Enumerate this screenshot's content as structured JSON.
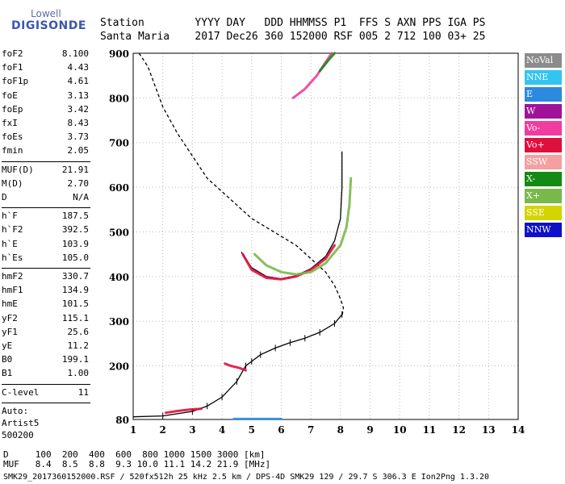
{
  "logo": {
    "line1": "Lowell",
    "line2": "DIGISONDE"
  },
  "header": {
    "line1": "Station        YYYY DAY   DDD HHMMSS P1  FFS S AXN PPS IGA PS",
    "line2": "Santa Maria    2017 Dec26 360 152000 RSF 005 2 712 100 03+ 25"
  },
  "params_group1": [
    {
      "k": "foF2",
      "v": "8.100"
    },
    {
      "k": "foF1",
      "v": "4.43"
    },
    {
      "k": "foF1p",
      "v": "4.61"
    },
    {
      "k": "foE",
      "v": "3.13"
    },
    {
      "k": "foEp",
      "v": "3.42"
    },
    {
      "k": "fxI",
      "v": "8.43"
    },
    {
      "k": "foEs",
      "v": "3.73"
    },
    {
      "k": "fmin",
      "v": "2.05"
    }
  ],
  "params_group2": [
    {
      "k": "MUF(D)",
      "v": "21.91"
    },
    {
      "k": "M(D)",
      "v": "2.70"
    },
    {
      "k": "D",
      "v": "N/A"
    }
  ],
  "params_group3": [
    {
      "k": "h`F",
      "v": "187.5"
    },
    {
      "k": "h`F2",
      "v": "392.5"
    },
    {
      "k": "h`E",
      "v": "103.9"
    },
    {
      "k": "h`Es",
      "v": "105.0"
    }
  ],
  "params_group4": [
    {
      "k": "hmF2",
      "v": "330.7"
    },
    {
      "k": "hmF1",
      "v": "134.9"
    },
    {
      "k": "hmE",
      "v": "101.5"
    },
    {
      "k": "yF2",
      "v": "115.1"
    },
    {
      "k": "yF1",
      "v": "25.6"
    },
    {
      "k": "yE",
      "v": "11.2"
    },
    {
      "k": "B0",
      "v": "199.1"
    },
    {
      "k": "B1",
      "v": "1.00"
    }
  ],
  "clevel": {
    "k": "C-level",
    "v": "11"
  },
  "auto": {
    "line1": "Auto:",
    "line2": "Artist5",
    "line3": "500200"
  },
  "legend": [
    {
      "label": "NoVal",
      "color": "#8c8c8c"
    },
    {
      "label": "NNE",
      "color": "#33c4f0"
    },
    {
      "label": "E",
      "color": "#2b8ae0"
    },
    {
      "label": "W",
      "color": "#a0129a"
    },
    {
      "label": "Vo-",
      "color": "#f03ca0"
    },
    {
      "label": "Vo+",
      "color": "#e0103c"
    },
    {
      "label": "SSW",
      "color": "#f4a0a0"
    },
    {
      "label": "X-",
      "color": "#138a13"
    },
    {
      "label": "X+",
      "color": "#7ab84a"
    },
    {
      "label": "SSE",
      "color": "#d4d400"
    },
    {
      "label": "NNW",
      "color": "#1010c8"
    }
  ],
  "footer": {
    "line1": "D     100  200  400  600  800 1000 1500 3000 [km]",
    "line2": "MUF   8.4  8.5  8.8  9.3 10.0 11.1 14.2 21.9 [MHz]",
    "line3": "SMK29_2017360152000.RSF / 520fx512h 25 kHz 2.5 km / DPS-4D SMK29 129 / 29.7 S 306.3 E Ion2Png 1.3.20"
  },
  "chart_data": {
    "type": "scatter",
    "xlabel": "",
    "ylabel": "",
    "xlim": [
      1,
      14
    ],
    "ylim": [
      80,
      900
    ],
    "xticks": [
      1,
      2,
      3,
      4,
      5,
      6,
      7,
      8,
      9,
      10,
      11,
      12,
      13,
      14
    ],
    "yticks": [
      80,
      200,
      300,
      400,
      500,
      600,
      700,
      800,
      900
    ],
    "grid": true,
    "series": [
      {
        "style": "dashed",
        "color": "#000000",
        "points": [
          [
            1.2,
            900
          ],
          [
            1.5,
            870
          ],
          [
            2,
            780
          ],
          [
            2.5,
            720
          ],
          [
            3,
            670
          ],
          [
            3.5,
            620
          ],
          [
            4,
            590
          ],
          [
            4.5,
            560
          ],
          [
            5,
            530
          ],
          [
            5.5,
            510
          ],
          [
            6,
            490
          ],
          [
            6.5,
            470
          ],
          [
            7,
            440
          ],
          [
            7.5,
            410
          ],
          [
            7.8,
            380
          ],
          [
            8.0,
            350
          ],
          [
            8.1,
            330
          ],
          [
            8.05,
            310
          ]
        ]
      },
      {
        "style": "solid",
        "color": "#000000",
        "points": [
          [
            1,
            86
          ],
          [
            2,
            88
          ],
          [
            3,
            98
          ],
          [
            3.5,
            110
          ],
          [
            4,
            130
          ],
          [
            4.5,
            165
          ],
          [
            4.8,
            200
          ],
          [
            5,
            210
          ],
          [
            5.3,
            225
          ],
          [
            5.8,
            240
          ],
          [
            6.3,
            252
          ],
          [
            6.8,
            262
          ],
          [
            7.3,
            275
          ],
          [
            7.8,
            295
          ],
          [
            8.05,
            315
          ]
        ]
      },
      {
        "style": "solid",
        "color": "#000000",
        "points": [
          [
            4.65,
            455
          ],
          [
            5,
            420
          ],
          [
            5.5,
            400
          ],
          [
            6,
            395
          ],
          [
            6.5,
            402
          ],
          [
            7,
            418
          ],
          [
            7.5,
            445
          ],
          [
            7.8,
            480
          ],
          [
            8,
            530
          ],
          [
            8.05,
            600
          ],
          [
            8.05,
            680
          ]
        ]
      },
      {
        "style": "trace",
        "color": "#e0103c",
        "points": [
          [
            4.7,
            450
          ],
          [
            5,
            415
          ],
          [
            5.5,
            397
          ],
          [
            6,
            394
          ],
          [
            6.5,
            400
          ],
          [
            7,
            415
          ],
          [
            7.5,
            440
          ],
          [
            7.8,
            470
          ]
        ]
      },
      {
        "style": "trace",
        "color": "#7ab84a",
        "points": [
          [
            5.1,
            450
          ],
          [
            5.5,
            425
          ],
          [
            6,
            410
          ],
          [
            6.5,
            405
          ],
          [
            7,
            410
          ],
          [
            7.5,
            430
          ],
          [
            8,
            470
          ],
          [
            8.2,
            510
          ],
          [
            8.3,
            560
          ],
          [
            8.35,
            620
          ]
        ]
      },
      {
        "style": "trace",
        "color": "#f03ca0",
        "points": [
          [
            6.4,
            800
          ],
          [
            6.8,
            820
          ],
          [
            7.2,
            850
          ],
          [
            7.5,
            880
          ],
          [
            7.7,
            900
          ]
        ]
      },
      {
        "style": "trace",
        "color": "#138a13",
        "points": [
          [
            7.3,
            860
          ],
          [
            7.6,
            885
          ],
          [
            7.8,
            900
          ]
        ]
      },
      {
        "style": "trace",
        "color": "#e0103c",
        "points": [
          [
            4.1,
            205
          ],
          [
            4.3,
            200
          ],
          [
            4.6,
            195
          ],
          [
            4.8,
            190
          ]
        ]
      },
      {
        "style": "trace",
        "color": "#e0103c",
        "points": [
          [
            2.1,
            95
          ],
          [
            2.5,
            99
          ],
          [
            2.9,
            102
          ],
          [
            3.3,
            104
          ]
        ]
      },
      {
        "style": "trace",
        "color": "#2b8ae0",
        "points": [
          [
            4.4,
            81
          ],
          [
            4.8,
            81
          ],
          [
            5.2,
            81
          ],
          [
            5.6,
            81
          ],
          [
            6.0,
            81
          ]
        ]
      }
    ]
  }
}
